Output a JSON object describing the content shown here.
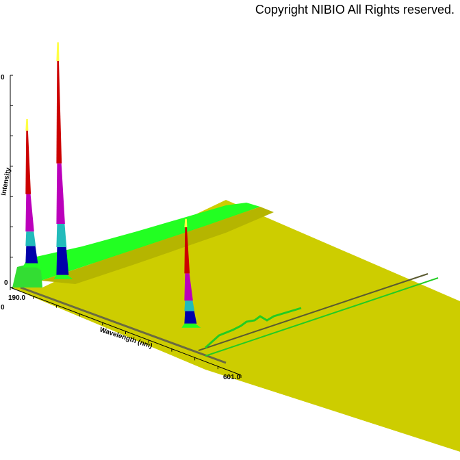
{
  "copyright": "Copyright NIBIO All Rights reserved.",
  "chart_data": {
    "type": "area",
    "title": "",
    "xlabel": "Wavelength (nm)",
    "ylabel": "Intensity",
    "x_ticks": [
      "190.0",
      "601.0"
    ],
    "y_ticks": [
      "0",
      "0",
      "0"
    ],
    "xlim": [
      190.0,
      601.0
    ],
    "colors": {
      "plane": "#d4d400",
      "ridge": "#22ff22",
      "blue": "#0000aa",
      "cyan": "#22bbbb",
      "magenta": "#bb00bb",
      "red": "#cc0000",
      "yellow": "#ffff44"
    },
    "peaks": [
      {
        "x": 205,
        "level": 0.62
      },
      {
        "x": 260,
        "level": 1.0
      },
      {
        "x": 488,
        "level": 0.45
      }
    ]
  }
}
